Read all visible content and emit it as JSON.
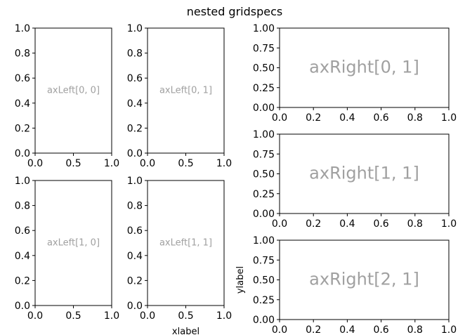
{
  "figure": {
    "title": "nested gridspecs"
  },
  "chart_data": [
    {
      "type": "text-annotation",
      "name": "axLeft[0, 0]",
      "annotation": "axLeft[0, 0]",
      "xlim": [
        0,
        1
      ],
      "ylim": [
        0,
        1
      ],
      "xticks": [
        0.0,
        0.5,
        1.0
      ],
      "xtick_labels": [
        "0.0",
        "0.5",
        "1.0"
      ],
      "yticks": [
        0.0,
        0.2,
        0.4,
        0.6,
        0.8,
        1.0
      ],
      "ytick_labels": [
        "0.0",
        "0.2",
        "0.4",
        "0.6",
        "0.8",
        "1.0"
      ],
      "xlabel": "",
      "ylabel": ""
    },
    {
      "type": "text-annotation",
      "name": "axLeft[0, 1]",
      "annotation": "axLeft[0, 1]",
      "xlim": [
        0,
        1
      ],
      "ylim": [
        0,
        1
      ],
      "xticks": [
        0.0,
        0.5,
        1.0
      ],
      "xtick_labels": [
        "0.0",
        "0.5",
        "1.0"
      ],
      "yticks": [
        0.0,
        0.2,
        0.4,
        0.6,
        0.8,
        1.0
      ],
      "ytick_labels": [
        "0.0",
        "0.2",
        "0.4",
        "0.6",
        "0.8",
        "1.0"
      ],
      "xlabel": "",
      "ylabel": ""
    },
    {
      "type": "text-annotation",
      "name": "axLeft[1, 0]",
      "annotation": "axLeft[1, 0]",
      "xlim": [
        0,
        1
      ],
      "ylim": [
        0,
        1
      ],
      "xticks": [
        0.0,
        0.5,
        1.0
      ],
      "xtick_labels": [
        "0.0",
        "0.5",
        "1.0"
      ],
      "yticks": [
        0.0,
        0.2,
        0.4,
        0.6,
        0.8,
        1.0
      ],
      "ytick_labels": [
        "0.0",
        "0.2",
        "0.4",
        "0.6",
        "0.8",
        "1.0"
      ],
      "xlabel": "",
      "ylabel": ""
    },
    {
      "type": "text-annotation",
      "name": "axLeft[1, 1]",
      "annotation": "axLeft[1, 1]",
      "xlim": [
        0,
        1
      ],
      "ylim": [
        0,
        1
      ],
      "xticks": [
        0.0,
        0.5,
        1.0
      ],
      "xtick_labels": [
        "0.0",
        "0.5",
        "1.0"
      ],
      "yticks": [
        0.0,
        0.2,
        0.4,
        0.6,
        0.8,
        1.0
      ],
      "ytick_labels": [
        "0.0",
        "0.2",
        "0.4",
        "0.6",
        "0.8",
        "1.0"
      ],
      "xlabel": "xlabel",
      "ylabel": ""
    },
    {
      "type": "text-annotation",
      "name": "axRight[0, 1]",
      "annotation": "axRight[0, 1]",
      "xlim": [
        0,
        1
      ],
      "ylim": [
        0,
        1
      ],
      "xticks": [
        0.0,
        0.2,
        0.4,
        0.6,
        0.8,
        1.0
      ],
      "xtick_labels": [
        "0.0",
        "0.2",
        "0.4",
        "0.6",
        "0.8",
        "1.0"
      ],
      "yticks": [
        0.0,
        0.25,
        0.5,
        0.75,
        1.0
      ],
      "ytick_labels": [
        "0.00",
        "0.25",
        "0.50",
        "0.75",
        "1.00"
      ],
      "xlabel": "",
      "ylabel": ""
    },
    {
      "type": "text-annotation",
      "name": "axRight[1, 1]",
      "annotation": "axRight[1, 1]",
      "xlim": [
        0,
        1
      ],
      "ylim": [
        0,
        1
      ],
      "xticks": [
        0.0,
        0.2,
        0.4,
        0.6,
        0.8,
        1.0
      ],
      "xtick_labels": [
        "0.0",
        "0.2",
        "0.4",
        "0.6",
        "0.8",
        "1.0"
      ],
      "yticks": [
        0.0,
        0.25,
        0.5,
        0.75,
        1.0
      ],
      "ytick_labels": [
        "0.00",
        "0.25",
        "0.50",
        "0.75",
        "1.00"
      ],
      "xlabel": "",
      "ylabel": ""
    },
    {
      "type": "text-annotation",
      "name": "axRight[2, 1]",
      "annotation": "axRight[2, 1]",
      "xlim": [
        0,
        1
      ],
      "ylim": [
        0,
        1
      ],
      "xticks": [
        0.0,
        0.2,
        0.4,
        0.6,
        0.8,
        1.0
      ],
      "xtick_labels": [
        "0.0",
        "0.2",
        "0.4",
        "0.6",
        "0.8",
        "1.0"
      ],
      "yticks": [
        0.0,
        0.25,
        0.5,
        0.75,
        1.0
      ],
      "ytick_labels": [
        "0.00",
        "0.25",
        "0.50",
        "0.75",
        "1.00"
      ],
      "xlabel": "",
      "ylabel": "ylabel"
    }
  ],
  "colors": {
    "annotation": "#a0a0a0",
    "axes": "#000000",
    "background": "#ffffff"
  }
}
